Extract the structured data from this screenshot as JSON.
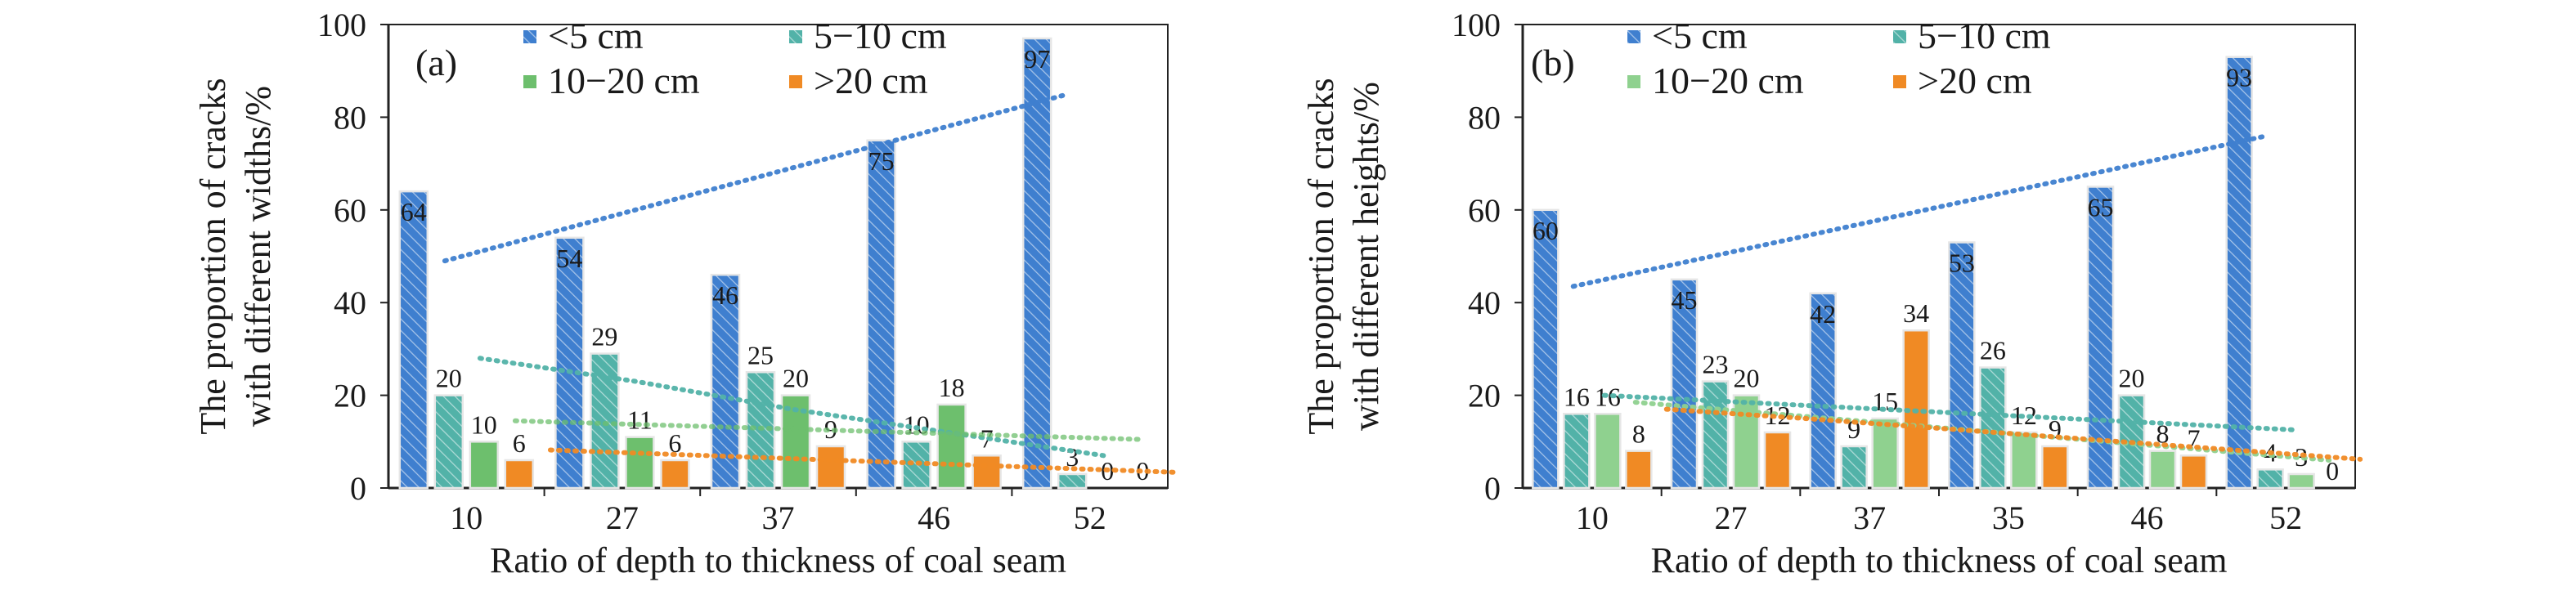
{
  "chart_data": [
    {
      "type": "bar",
      "panel_label": "(a)",
      "categories": [
        "10",
        "27",
        "37",
        "46",
        "52"
      ],
      "xlabel": "Ratio of depth to thickness of coal seam",
      "ylabel_lines": [
        "The proportion of cracks",
        "with different widths/%"
      ],
      "ylim": [
        0,
        100
      ],
      "yticks": [
        0,
        20,
        40,
        60,
        80,
        100
      ],
      "legend_position": "top",
      "series": [
        {
          "name": "<5 cm",
          "values": [
            64,
            54,
            46,
            75,
            97
          ],
          "color": "#3f7fcf",
          "hatched": true,
          "trend": [
            49,
            58,
            67,
            76,
            85
          ]
        },
        {
          "name": "5−10 cm",
          "values": [
            20,
            29,
            25,
            10,
            3
          ],
          "color": "#52b2a8",
          "hatched": true,
          "trend": [
            28,
            23,
            17,
            12,
            7
          ]
        },
        {
          "name": "10−20 cm",
          "values": [
            10,
            11,
            20,
            18,
            0
          ],
          "color": "#6dbf6d",
          "hatched": false,
          "trend": [
            14.5,
            13.5,
            12.5,
            11.5,
            10.5
          ]
        },
        {
          "name": ">20 cm",
          "values": [
            6,
            6,
            9,
            7,
            0
          ],
          "color": "#f08a24",
          "hatched": false,
          "trend": [
            8.2,
            7,
            5.8,
            4.6,
            3.4
          ]
        }
      ]
    },
    {
      "type": "bar",
      "panel_label": "(b)",
      "categories": [
        "10",
        "27",
        "37",
        "35",
        "46",
        "52"
      ],
      "xlabel": "Ratio of depth to thickness of coal seam",
      "ylabel_lines": [
        "The proportion of cracks",
        "with different heights/%"
      ],
      "ylim": [
        0,
        100
      ],
      "yticks": [
        0,
        20,
        40,
        60,
        80,
        100
      ],
      "legend_position": "top",
      "series": [
        {
          "name": "<5 cm",
          "values": [
            60,
            45,
            42,
            53,
            65,
            93
          ],
          "color": "#3f7fcf",
          "hatched": true,
          "trend": [
            43.5,
            50,
            56.5,
            63,
            69.5,
            76
          ]
        },
        {
          "name": "5−10 cm",
          "values": [
            16,
            23,
            9,
            26,
            20,
            4
          ],
          "color": "#52b2a8",
          "hatched": true,
          "trend": [
            20,
            18.5,
            17,
            15.5,
            14,
            12.5
          ]
        },
        {
          "name": "10−20 cm",
          "values": [
            16,
            20,
            15,
            12,
            8,
            3
          ],
          "color": "#8fd18f",
          "hatched": false,
          "trend": [
            18.5,
            16,
            13.5,
            11,
            8.5,
            6
          ]
        },
        {
          "name": ">20 cm",
          "values": [
            8,
            12,
            34,
            9,
            7,
            0
          ],
          "color": "#f08a24",
          "hatched": false,
          "trend": [
            17,
            15,
            12.8,
            10.6,
            8.4,
            6.2
          ]
        }
      ]
    }
  ]
}
